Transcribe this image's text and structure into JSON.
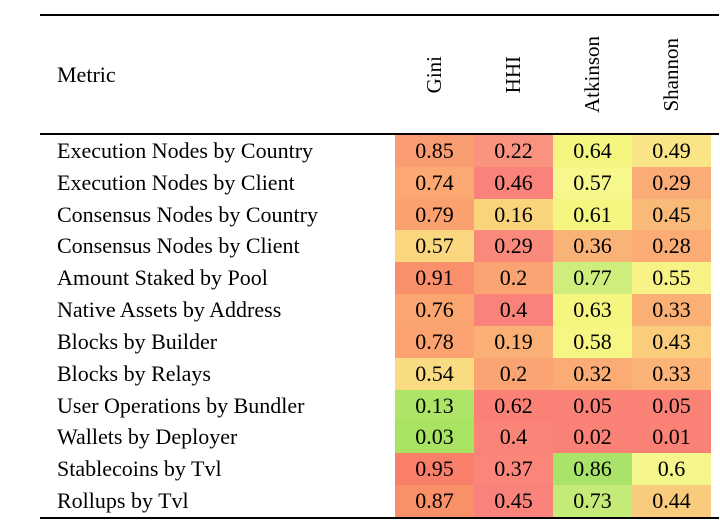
{
  "page": {
    "background": "#ffffff",
    "text_color": "#000000"
  },
  "table": {
    "metric_header": "Metric",
    "columns": [
      "Gini",
      "HHI",
      "Atkinson",
      "Shannon"
    ],
    "rows": [
      {
        "metric": "Execution Nodes by Country",
        "values": [
          "0.85",
          "0.22",
          "0.64",
          "0.49"
        ],
        "colors": [
          "#FA9C72",
          "#F9927E",
          "#F4F680",
          "#F9E586"
        ]
      },
      {
        "metric": "Execution Nodes by Client",
        "values": [
          "0.74",
          "0.46",
          "0.57",
          "0.29"
        ],
        "colors": [
          "#FBA873",
          "#F9827B",
          "#F6F78C",
          "#FAAB76"
        ]
      },
      {
        "metric": "Consensus Nodes by Country",
        "values": [
          "0.79",
          "0.16",
          "0.61",
          "0.45"
        ],
        "colors": [
          "#FBA170",
          "#FAD47B",
          "#F4F680",
          "#FABA77"
        ]
      },
      {
        "metric": "Consensus Nodes by Client",
        "values": [
          "0.57",
          "0.29",
          "0.36",
          "0.28"
        ],
        "colors": [
          "#FAD77E",
          "#F98A7B",
          "#FAB377",
          "#FAAC74"
        ]
      },
      {
        "metric": "Amount Staked by Pool",
        "values": [
          "0.91",
          "0.2",
          "0.77",
          "0.55"
        ],
        "colors": [
          "#F98F6B",
          "#FAA473",
          "#CDEE7D",
          "#F7F286"
        ]
      },
      {
        "metric": "Native Assets by Address",
        "values": [
          "0.76",
          "0.4",
          "0.63",
          "0.33"
        ],
        "colors": [
          "#FBA671",
          "#F9837B",
          "#F4F680",
          "#FAAF75"
        ]
      },
      {
        "metric": "Blocks by Builder",
        "values": [
          "0.78",
          "0.19",
          "0.58",
          "0.43"
        ],
        "colors": [
          "#FBA370",
          "#FAAF74",
          "#F5F683",
          "#FACC7B"
        ]
      },
      {
        "metric": "Blocks by Relays",
        "values": [
          "0.54",
          "0.2",
          "0.32",
          "0.33"
        ],
        "colors": [
          "#F9DC82",
          "#FAA473",
          "#FAAC74",
          "#FBB378"
        ]
      },
      {
        "metric": "User Operations by Bundler",
        "values": [
          "0.13",
          "0.62",
          "0.05",
          "0.05"
        ],
        "colors": [
          "#AEE566",
          "#FA8176",
          "#FA8176",
          "#FA8176"
        ]
      },
      {
        "metric": "Wallets by Deployer",
        "values": [
          "0.03",
          "0.4",
          "0.02",
          "0.01"
        ],
        "colors": [
          "#A9E362",
          "#FA8478",
          "#FA8176",
          "#FA8176"
        ]
      },
      {
        "metric": "Stablecoins by Tvl",
        "values": [
          "0.95",
          "0.37",
          "0.86",
          "0.6"
        ],
        "colors": [
          "#FA7F6B",
          "#FA8578",
          "#A9E36A",
          "#F5F68C"
        ]
      },
      {
        "metric": "Rollups by Tvl",
        "values": [
          "0.87",
          "0.45",
          "0.73",
          "0.44"
        ],
        "colors": [
          "#FA9068",
          "#F9837B",
          "#C4EB77",
          "#F9CB7C"
        ]
      }
    ]
  },
  "chart_data": {
    "type": "heatmap",
    "title": "",
    "columns": [
      "Gini",
      "HHI",
      "Atkinson",
      "Shannon"
    ],
    "rows": [
      "Execution Nodes by Country",
      "Execution Nodes by Client",
      "Consensus Nodes by Country",
      "Consensus Nodes by Client",
      "Amount Staked by Pool",
      "Native Assets by Address",
      "Blocks by Builder",
      "Blocks by Relays",
      "User Operations by Bundler",
      "Wallets by Deployer",
      "Stablecoins by Tvl",
      "Rollups by Tvl"
    ],
    "values": [
      [
        0.85,
        0.22,
        0.64,
        0.49
      ],
      [
        0.74,
        0.46,
        0.57,
        0.29
      ],
      [
        0.79,
        0.16,
        0.61,
        0.45
      ],
      [
        0.57,
        0.29,
        0.36,
        0.28
      ],
      [
        0.91,
        0.2,
        0.77,
        0.55
      ],
      [
        0.76,
        0.4,
        0.63,
        0.33
      ],
      [
        0.78,
        0.19,
        0.58,
        0.43
      ],
      [
        0.54,
        0.2,
        0.32,
        0.33
      ],
      [
        0.13,
        0.62,
        0.05,
        0.05
      ],
      [
        0.03,
        0.4,
        0.02,
        0.01
      ],
      [
        0.95,
        0.37,
        0.86,
        0.6
      ],
      [
        0.87,
        0.45,
        0.73,
        0.44
      ]
    ],
    "palette": {
      "red": "#FA8176",
      "orange": "#FBA873",
      "yellow": "#F4F680",
      "green": "#AEE566"
    },
    "legend_position": "none",
    "grid": false
  }
}
